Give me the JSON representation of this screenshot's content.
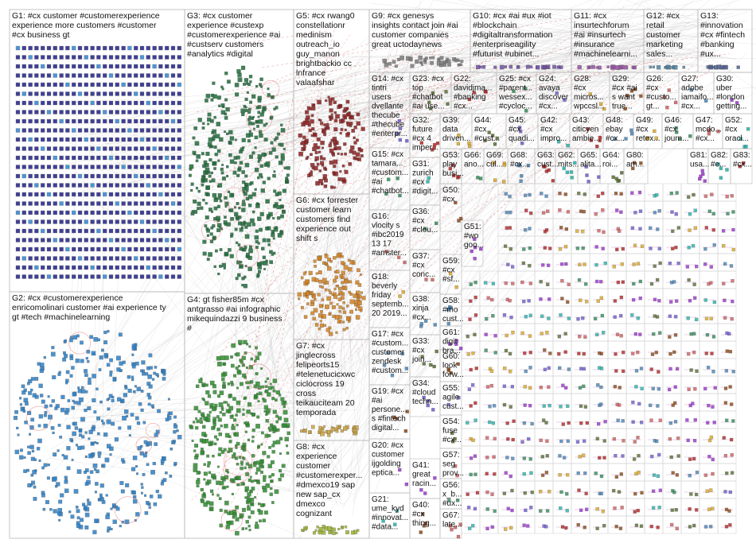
{
  "colors": {
    "background": "#ffffff",
    "border": "#b8b8b8",
    "edge": "#bdbdbd",
    "edge_cross": "#d04545",
    "text": "#111111"
  },
  "groups": [
    {
      "id": "G1",
      "lines": [
        "G1: #cx customer #customerexperience",
        "experience more customers #customer",
        "#cx business gt"
      ],
      "color": "#2b2b8a"
    },
    {
      "id": "G2",
      "lines": [
        "G2: #cx #customerexperience",
        "enricomolinari customer #ai experience ty",
        "gt #tech #machinelearning"
      ],
      "color": "#2a7fc7"
    },
    {
      "id": "G3",
      "lines": [
        "G3: #cx customer",
        "experience #custexp",
        "#customerexperience #ai",
        "#custserv customers",
        "#analytics #digital"
      ],
      "color": "#1f6b3a"
    },
    {
      "id": "G4",
      "lines": [
        "G4: gt fisher85m #cx",
        "antgrasso #ai infographic",
        "mikequindazzi 9 business",
        "#"
      ],
      "color": "#2e8b2e"
    },
    {
      "id": "G5",
      "lines": [
        "G5: #cx rwang0",
        "constellationr",
        "medinism",
        "outreach_io",
        "guy_manon",
        "brightbackio cc",
        "lnfrance",
        "valaafshar"
      ],
      "color": "#8b2020"
    },
    {
      "id": "G6",
      "lines": [
        "G6: #cx forrester",
        "customer learn",
        "customers find",
        "experience out",
        "shift s"
      ],
      "color": "#d08020"
    },
    {
      "id": "G7",
      "lines": [
        "G7: #cx",
        "jinglecross",
        "felipeorts15",
        "#telenetucicxwc",
        "ciclocross 19",
        "cross",
        "teikauciteam 20",
        "temporada"
      ],
      "color": "#c8a040"
    },
    {
      "id": "G8",
      "lines": [
        "G8: #cx",
        "experience",
        "customer",
        "#customerexper...",
        "#dmexco19 sap",
        "new sap_cx",
        "dmexco",
        "cognizant"
      ],
      "color": "#9ab030"
    },
    {
      "id": "G9",
      "lines": [
        "G9: #cx genesys",
        "insights contact join #ai",
        "customer companies",
        "great uctodaynews"
      ],
      "color": "#7a7a7a"
    },
    {
      "id": "G10",
      "lines": [
        "G10: #cx #ai #ux #iot",
        "#blockchain",
        "#digitaltransformation",
        "#enterpriseagility",
        "#futurist #ubinet..."
      ],
      "color": "#7050a0"
    },
    {
      "id": "G11",
      "lines": [
        "G11: #cx",
        "insurtechforum",
        "#ai #insurtech",
        "#insurance",
        "#machinelearni..."
      ],
      "color": "#9050a0"
    },
    {
      "id": "G12",
      "lines": [
        "G12: #cx",
        "retail",
        "customer",
        "marketing",
        "sales..."
      ],
      "color": "#5080a0"
    },
    {
      "id": "G13",
      "lines": [
        "G13:",
        "#innovation",
        "#cx #fintech",
        "#banking",
        "#ux..."
      ],
      "color": "#506090"
    }
  ],
  "cells": [
    {
      "id": "G14",
      "lines": [
        "G14: #cx",
        "tintri",
        "users",
        "dvellante",
        "thecube",
        "#thecube",
        "#enterpr..."
      ]
    },
    {
      "id": "G15",
      "lines": [
        "G15: #cx",
        "tamara...",
        "#custom...",
        "#ai",
        "#chatbot..."
      ]
    },
    {
      "id": "G16",
      "lines": [
        "G16:",
        "vlocity s",
        "#ibc2019",
        "13 17",
        "#amster..."
      ]
    },
    {
      "id": "G17",
      "lines": [
        "G17: #cx",
        "#custom...",
        "customer",
        "zendesk",
        "#custom..."
      ]
    },
    {
      "id": "G18",
      "lines": [
        "G18:",
        "beverly",
        "friday",
        "septemb...",
        "20 2019..."
      ]
    },
    {
      "id": "G19",
      "lines": [
        "G19: #cx",
        "#ai",
        "persone...",
        "s #fintech",
        "digital..."
      ]
    },
    {
      "id": "G20",
      "lines": [
        "G20: #cx",
        "customer",
        "ijgolding",
        "eptica..."
      ]
    },
    {
      "id": "G21",
      "lines": [
        "G21:",
        "ume_kyd",
        "#innovat...",
        "#data..."
      ]
    },
    {
      "id": "G22",
      "lines": [
        "G22:",
        "davidjma...",
        "#banking",
        "#cx..."
      ]
    },
    {
      "id": "G23",
      "lines": [
        "G23: #cx",
        "top",
        "#chatbot",
        "#ai use..."
      ]
    },
    {
      "id": "G24",
      "lines": [
        "G24:",
        "avaya",
        "discover",
        "#cx..."
      ]
    },
    {
      "id": "G25",
      "lines": [
        "G25: #cx",
        "#parent...",
        "wessex...",
        "#cycloc..."
      ]
    },
    {
      "id": "G26",
      "lines": [
        "G26:",
        "#cx",
        "#custo...",
        "gt..."
      ]
    },
    {
      "id": "G27",
      "lines": [
        "G27:",
        "adobe",
        "iamaifo...",
        "#cx..."
      ]
    },
    {
      "id": "G28",
      "lines": [
        "G28:",
        "#cx",
        "micros...",
        "wpccsl..."
      ]
    },
    {
      "id": "G29",
      "lines": [
        "G29:",
        "#cx #ai",
        "s want",
        "true..."
      ]
    },
    {
      "id": "G30",
      "lines": [
        "G30:",
        "uber",
        "#london",
        "getting..."
      ]
    },
    {
      "id": "G31",
      "lines": [
        "G31:",
        "zurich",
        "#cx",
        "#digit..."
      ]
    },
    {
      "id": "G32",
      "lines": [
        "G32:",
        "future",
        "#cx 4",
        "imper..."
      ]
    },
    {
      "id": "G33",
      "lines": [
        "G33:",
        "#cx",
        "join..."
      ]
    },
    {
      "id": "G34",
      "lines": [
        "G34:",
        "#cloud",
        "techn..."
      ]
    },
    {
      "id": "G36",
      "lines": [
        "G36:",
        "#cx",
        "#clou..."
      ]
    },
    {
      "id": "G37",
      "lines": [
        "G37:",
        "#cx",
        "conc..."
      ]
    },
    {
      "id": "G38",
      "lines": [
        "G38:",
        "xinja",
        "#cx..."
      ]
    },
    {
      "id": "G39",
      "lines": [
        "G39:",
        "data",
        "driven..."
      ]
    },
    {
      "id": "G40",
      "lines": [
        "G40:",
        "#cx",
        "thing..."
      ]
    },
    {
      "id": "G41",
      "lines": [
        "G41:",
        "great",
        "racin..."
      ]
    },
    {
      "id": "G42",
      "lines": [
        "G42:",
        "#cx",
        "impro..."
      ]
    },
    {
      "id": "G43",
      "lines": [
        "G43:",
        "citicyen",
        "ambie..."
      ]
    },
    {
      "id": "G44",
      "lines": [
        "G44:",
        "#cx",
        "#cust..."
      ]
    },
    {
      "id": "G45",
      "lines": [
        "G45:",
        "#cx",
        "quadi..."
      ]
    },
    {
      "id": "G46",
      "lines": [
        "G46:",
        "#cx",
        "journ..."
      ]
    },
    {
      "id": "G47",
      "lines": [
        "G47:",
        "mcdo...",
        "#cx..."
      ]
    },
    {
      "id": "G48",
      "lines": [
        "G48:",
        "ebay",
        "#cx..."
      ]
    },
    {
      "id": "G49",
      "lines": [
        "G49:",
        "#cx",
        "retex..."
      ]
    },
    {
      "id": "G50",
      "lines": [
        "G50:",
        "#cx"
      ]
    },
    {
      "id": "G51",
      "lines": [
        "G51:",
        "#wo",
        "goo..."
      ]
    },
    {
      "id": "G52",
      "lines": [
        "G52:",
        "#cx",
        "oracl..."
      ]
    },
    {
      "id": "G53",
      "lines": [
        "G53:",
        "play",
        "busi..."
      ]
    },
    {
      "id": "G54",
      "lines": [
        "G54:",
        "fuse",
        "#cx..."
      ]
    },
    {
      "id": "G55",
      "lines": [
        "G55:",
        "agile",
        "cust..."
      ]
    },
    {
      "id": "G56",
      "lines": [
        "G56:",
        "x_b...",
        "#ux..."
      ]
    },
    {
      "id": "G57",
      "lines": [
        "G57:",
        "seg",
        "prov..."
      ]
    },
    {
      "id": "G58",
      "lines": [
        "G58:",
        "#mo",
        "cust..."
      ]
    },
    {
      "id": "G59",
      "lines": [
        "G59:",
        "#cx",
        "#sf..."
      ]
    },
    {
      "id": "G60",
      "lines": [
        "G60:",
        "look",
        "forw..."
      ]
    },
    {
      "id": "G61",
      "lines": [
        "G61:",
        "digit",
        "bra..."
      ]
    },
    {
      "id": "G62",
      "lines": [
        "G62:",
        "mits..."
      ]
    },
    {
      "id": "G63",
      "lines": [
        "G63:",
        "cust..."
      ]
    },
    {
      "id": "G64",
      "lines": [
        "G64:",
        "roi..."
      ]
    },
    {
      "id": "G65",
      "lines": [
        "G65:",
        "alita..."
      ]
    },
    {
      "id": "G66",
      "lines": [
        "G66:",
        "ano..."
      ]
    },
    {
      "id": "G67",
      "lines": [
        "G67:",
        "late..."
      ]
    },
    {
      "id": "G68",
      "lines": [
        "G68:",
        "#cx..."
      ]
    },
    {
      "id": "G69",
      "lines": [
        "G69:",
        "cul..."
      ]
    },
    {
      "id": "G80",
      "lines": [
        "G80:",
        "am..."
      ]
    },
    {
      "id": "G81",
      "lines": [
        "G81:",
        "usa..."
      ]
    },
    {
      "id": "G82",
      "lines": [
        "G82:",
        "#e..."
      ]
    },
    {
      "id": "G83",
      "lines": [
        "G83:",
        "#cx..."
      ]
    }
  ]
}
